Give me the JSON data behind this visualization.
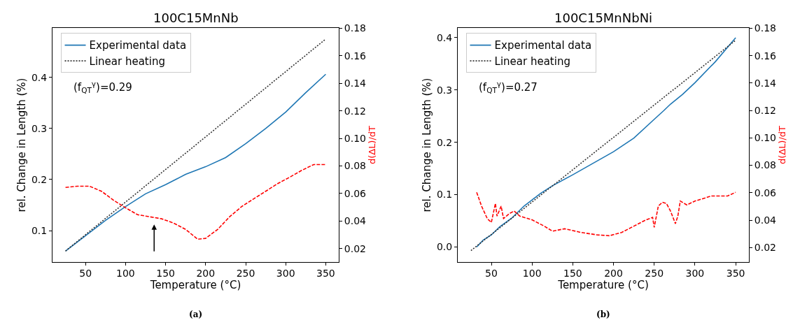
{
  "chart_data": [
    {
      "type": "line",
      "title": "100C15MnNb",
      "xlabel": "Temperature (°C)",
      "ylabel": "rel. Change in Length (%)",
      "y2label": "d(ΔL)/dT",
      "xlim": [
        8.75,
        366.25
      ],
      "xticks": [
        50,
        100,
        150,
        200,
        250,
        300,
        350
      ],
      "ylim": [
        0.039,
        0.496
      ],
      "yticks": [
        0.1,
        0.2,
        0.3,
        0.4
      ],
      "y2lim": [
        0.0104,
        0.18
      ],
      "y2ticks": [
        0.02,
        0.04,
        0.06,
        0.08,
        {
          "value": 0.1,
          "label": "0.10"
        },
        0.12,
        0.14,
        0.16,
        0.18
      ],
      "legend": "top left",
      "series": [
        {
          "name": "Experimental data",
          "color": "#1f77b4",
          "line_style": "solid",
          "x": [
            25,
            50,
            75,
            100,
            125,
            150,
            175,
            200,
            225,
            250,
            275,
            300,
            325,
            350
          ],
          "values": [
            0.06,
            0.09,
            0.12,
            0.147,
            0.172,
            0.19,
            0.21,
            0.225,
            0.243,
            0.27,
            0.3,
            0.332,
            0.37,
            0.406
          ]
        },
        {
          "name": "Linear heating",
          "color": "#333333",
          "line_style": "dotted",
          "x": [
            25,
            350
          ],
          "values": [
            0.06,
            0.475
          ]
        },
        {
          "color": "#ff0000",
          "line_style": "dashed",
          "axis": "y2",
          "x": [
            25,
            40,
            55,
            70,
            85,
            100,
            115,
            130,
            145,
            160,
            175,
            190,
            200,
            215,
            230,
            245,
            260,
            275,
            290,
            305,
            320,
            335,
            350
          ],
          "values": [
            0.0644,
            0.0653,
            0.0653,
            0.0616,
            0.0551,
            0.0496,
            0.0446,
            0.0431,
            0.0416,
            0.0385,
            0.0339,
            0.0268,
            0.0274,
            0.0339,
            0.0431,
            0.0505,
            0.0561,
            0.0616,
            0.0672,
            0.0718,
            0.0768,
            0.081,
            0.081
          ]
        }
      ],
      "annotations": [
        "(f$_{QT}$$^{γ}$)=0.29",
        "(a)"
      ]
    },
    {
      "type": "line",
      "title": "100C15MnNbNi",
      "xlabel": "Temperature (°C)",
      "ylabel": "rel. Change in Length (%)",
      "y2label": "d(ΔL)/dT",
      "xlim": [
        8.75,
        366.25
      ],
      "xticks": [
        50,
        100,
        150,
        200,
        250,
        300,
        350
      ],
      "ylim": [
        -0.0283,
        0.418
      ],
      "yticks": [
        {
          "value": 0,
          "label": "0.0"
        },
        0.1,
        0.2,
        0.3,
        0.4
      ],
      "y2lim": [
        0.0096,
        0.18
      ],
      "y2ticks": [
        0.02,
        0.04,
        0.06,
        0.08,
        {
          "value": 0.1,
          "label": "0.10"
        },
        0.12,
        0.14,
        0.16,
        0.18
      ],
      "legend": "top left",
      "series": [
        {
          "name": "Experimental data",
          "color": "#1f77b4",
          "line_style": "solid",
          "x": [
            32,
            40,
            50,
            60,
            75,
            90,
            100,
            110,
            125,
            150,
            175,
            200,
            225,
            250,
            262,
            270,
            285,
            300,
            325,
            350
          ],
          "values": [
            0.0,
            0.013,
            0.023,
            0.038,
            0.055,
            0.078,
            0.09,
            0.102,
            0.117,
            0.138,
            0.16,
            0.182,
            0.208,
            0.244,
            0.261,
            0.273,
            0.292,
            0.314,
            0.354,
            0.4
          ]
        },
        {
          "name": "Linear heating",
          "color": "#333333",
          "line_style": "dotted",
          "x": [
            25,
            350
          ],
          "values": [
            -0.007,
            0.395
          ]
        },
        {
          "color": "#ff0000",
          "line_style": "dashed",
          "axis": "y2",
          "x": [
            32,
            38,
            45,
            50,
            53,
            55,
            57,
            62,
            65,
            72,
            78,
            85,
            100,
            115,
            125,
            140,
            160,
            180,
            195,
            210,
            225,
            240,
            248,
            250,
            255,
            260,
            265,
            270,
            276,
            279,
            282,
            290,
            300,
            310,
            320,
            330,
            340,
            350
          ],
          "values": [
            0.0603,
            0.0502,
            0.0411,
            0.0383,
            0.0466,
            0.0521,
            0.0429,
            0.0502,
            0.0411,
            0.0447,
            0.0466,
            0.0429,
            0.0402,
            0.0356,
            0.0319,
            0.0337,
            0.031,
            0.0292,
            0.0286,
            0.031,
            0.0356,
            0.0402,
            0.042,
            0.0347,
            0.0502,
            0.053,
            0.0521,
            0.0466,
            0.0374,
            0.0429,
            0.0539,
            0.0511,
            0.0539,
            0.0557,
            0.0576,
            0.0576,
            0.0576,
            0.0603
          ]
        }
      ],
      "annotations": [
        "(f$_{QT}$$^{γ}$)=0.27",
        "(b)"
      ]
    }
  ]
}
